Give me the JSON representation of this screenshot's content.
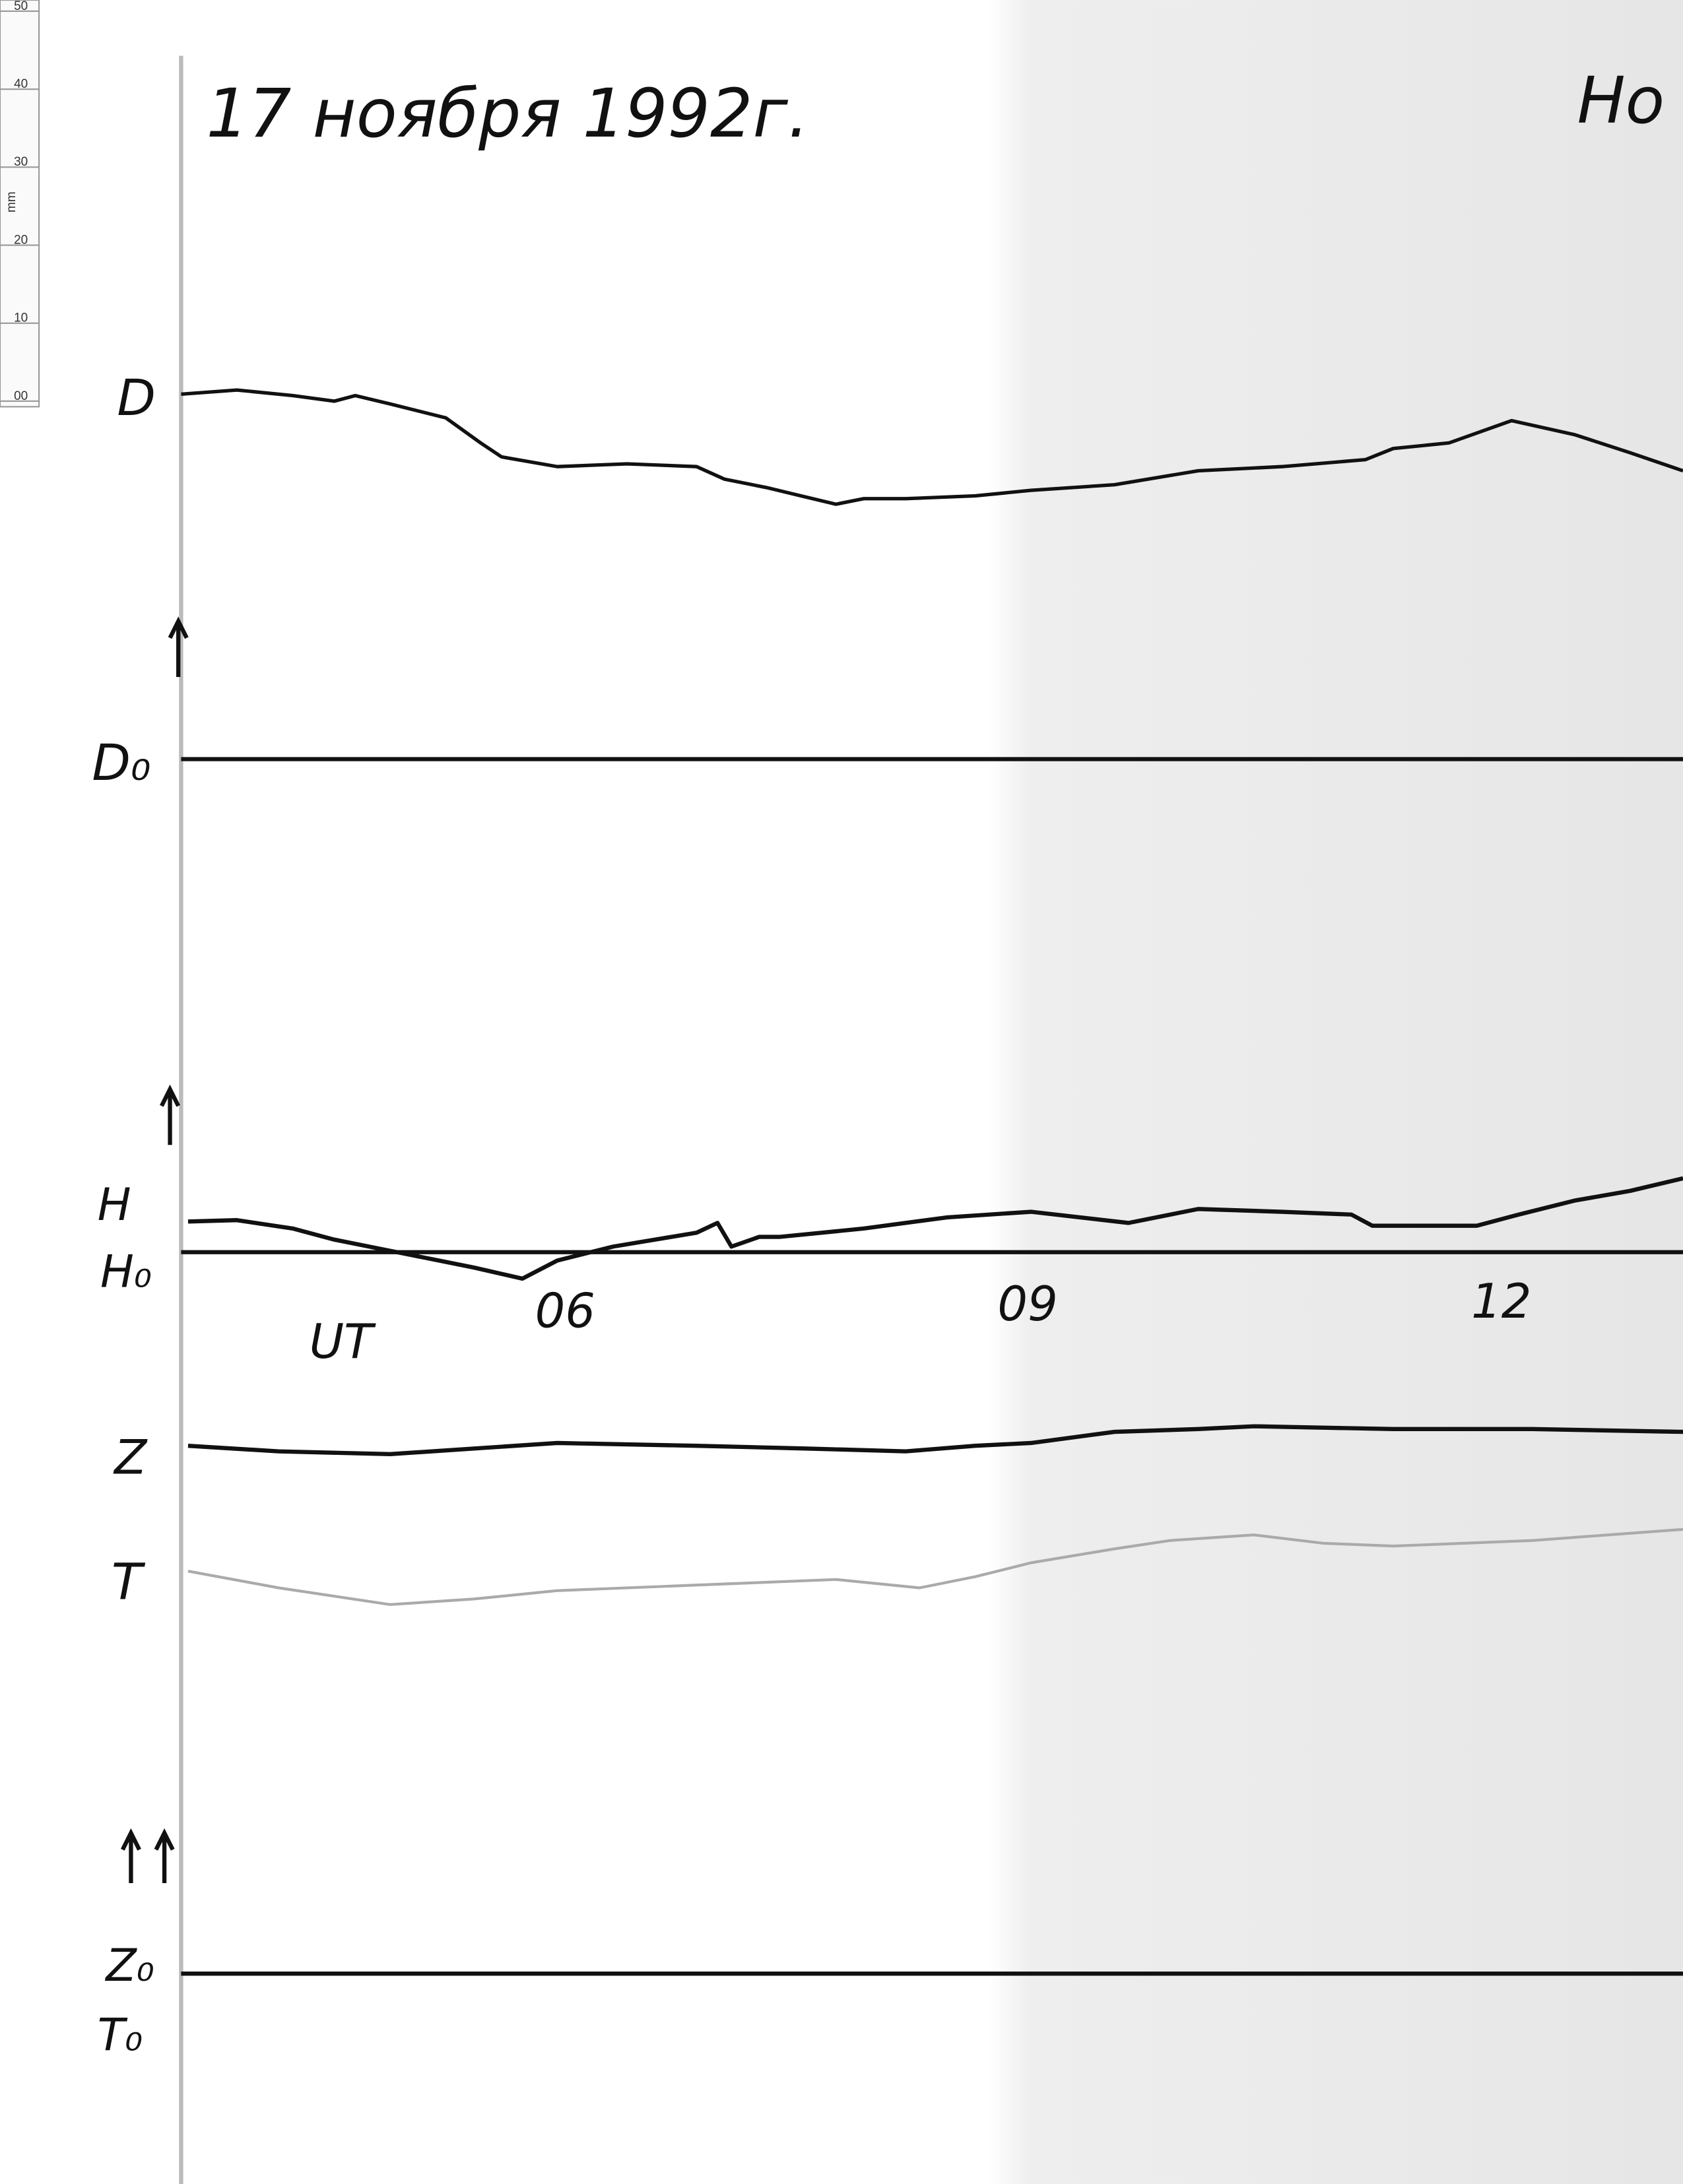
{
  "header": {
    "date": "17 ноября 1992г.",
    "corner": "Но"
  },
  "ruler": {
    "ticks": [
      "50",
      "40",
      "30",
      "20",
      "10",
      "00"
    ],
    "unit": "mm"
  },
  "channels": [
    "D",
    "D₀",
    "H",
    "H₀",
    "Z",
    "T",
    "Z₀",
    "T₀"
  ],
  "time_axis": {
    "label": "UT",
    "hours": [
      "06",
      "09",
      "12"
    ]
  }
}
